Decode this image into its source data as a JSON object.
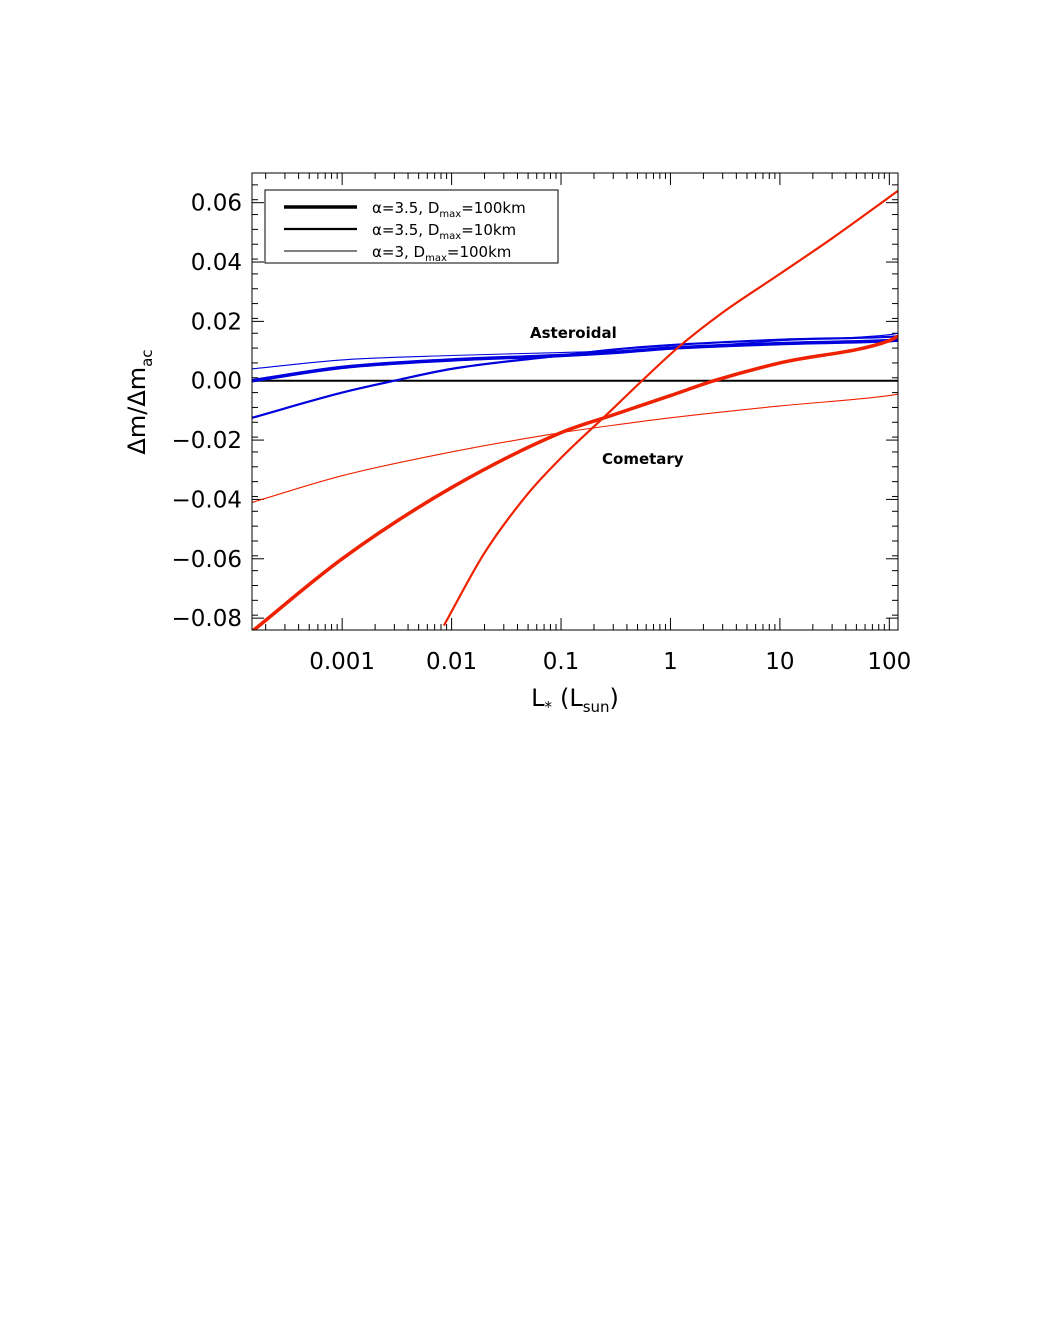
{
  "chart_data": {
    "type": "line",
    "title": "",
    "xlabel": "L",
    "xlabel_sub": "*",
    "xlabel_unit_open": "(L",
    "xlabel_unit_sub": "sun",
    "xlabel_unit_close": ")",
    "ylabel": "Δm/Δm",
    "ylabel_sub": "ac",
    "x_scale": "log",
    "xlim": [
      0.00015,
      120
    ],
    "ylim": [
      -0.084,
      0.07
    ],
    "x_ticks": [
      0.001,
      0.01,
      0.1,
      1,
      10,
      100
    ],
    "x_tick_labels": [
      "0.001",
      "0.01",
      "0.1",
      "1",
      "10",
      "100"
    ],
    "y_ticks": [
      -0.08,
      -0.06,
      -0.04,
      -0.02,
      0.0,
      0.02,
      0.04,
      0.06
    ],
    "y_tick_labels": [
      "−0.08",
      "−0.06",
      "−0.04",
      "−0.02",
      "0.00",
      "0.02",
      "0.04",
      "0.06"
    ],
    "grid": false,
    "legend_position": "top-left",
    "legend": [
      {
        "alpha": "α=3.5, D",
        "sub": "max",
        "rest": "=100km",
        "weight": "thick"
      },
      {
        "alpha": "α=3.5, D",
        "sub": "max",
        "rest": "=10km",
        "weight": "medium"
      },
      {
        "alpha": "α=3, D",
        "sub": "max",
        "rest": "=100km",
        "weight": "thin"
      }
    ],
    "annotations": [
      {
        "text": "Asteroidal",
        "color": "#0000dd"
      },
      {
        "text": "Cometary",
        "color": "#ee2200"
      }
    ],
    "colors": {
      "asteroidal": "#0000dd",
      "cometary": "#ee2200",
      "zero_line": "#000000"
    },
    "reference_line": {
      "y": 0.0
    },
    "series": [
      {
        "group": "Asteroidal",
        "weight": "thick",
        "color": "#0000dd",
        "x": [
          0.00015,
          0.001,
          0.01,
          0.1,
          0.3,
          1,
          10,
          100,
          120
        ],
        "y": [
          0.0,
          0.0045,
          0.007,
          0.0085,
          0.0095,
          0.011,
          0.0125,
          0.0135,
          0.0137
        ]
      },
      {
        "group": "Asteroidal",
        "weight": "medium",
        "color": "#0000dd",
        "x": [
          0.00015,
          0.001,
          0.003,
          0.01,
          0.1,
          0.3,
          1,
          10,
          100,
          120
        ],
        "y": [
          -0.0125,
          -0.004,
          0.0,
          0.004,
          0.0085,
          0.0105,
          0.012,
          0.0138,
          0.0148,
          0.015
        ]
      },
      {
        "group": "Asteroidal",
        "weight": "thin",
        "color": "#0000dd",
        "x": [
          0.00015,
          0.001,
          0.01,
          0.1,
          0.3,
          1,
          10,
          100,
          120
        ],
        "y": [
          0.004,
          0.007,
          0.0085,
          0.0095,
          0.01,
          0.011,
          0.0135,
          0.0155,
          0.016
        ]
      },
      {
        "group": "Cometary",
        "weight": "thick",
        "color": "#ee2200",
        "x": [
          0.00015,
          0.001,
          0.01,
          0.1,
          0.3,
          1,
          2.5,
          10,
          100,
          120
        ],
        "y": [
          -0.0845,
          -0.06,
          -0.036,
          -0.0175,
          -0.0115,
          -0.005,
          0.0,
          0.006,
          0.0135,
          0.015
        ]
      },
      {
        "group": "Cometary",
        "weight": "medium",
        "color": "#ee2200",
        "x": [
          0.0085,
          0.02,
          0.05,
          0.1,
          0.26,
          0.55,
          1.2,
          3,
          10,
          30,
          120
        ],
        "y": [
          -0.0825,
          -0.058,
          -0.038,
          -0.026,
          -0.0115,
          0.0,
          0.0115,
          0.023,
          0.036,
          0.048,
          0.064
        ]
      },
      {
        "group": "Cometary",
        "weight": "thin",
        "color": "#ee2200",
        "x": [
          0.00015,
          0.001,
          0.01,
          0.1,
          0.3,
          1,
          10,
          100,
          120
        ],
        "y": [
          -0.041,
          -0.032,
          -0.024,
          -0.0175,
          -0.015,
          -0.0125,
          -0.0085,
          -0.005,
          -0.0045
        ]
      }
    ]
  }
}
